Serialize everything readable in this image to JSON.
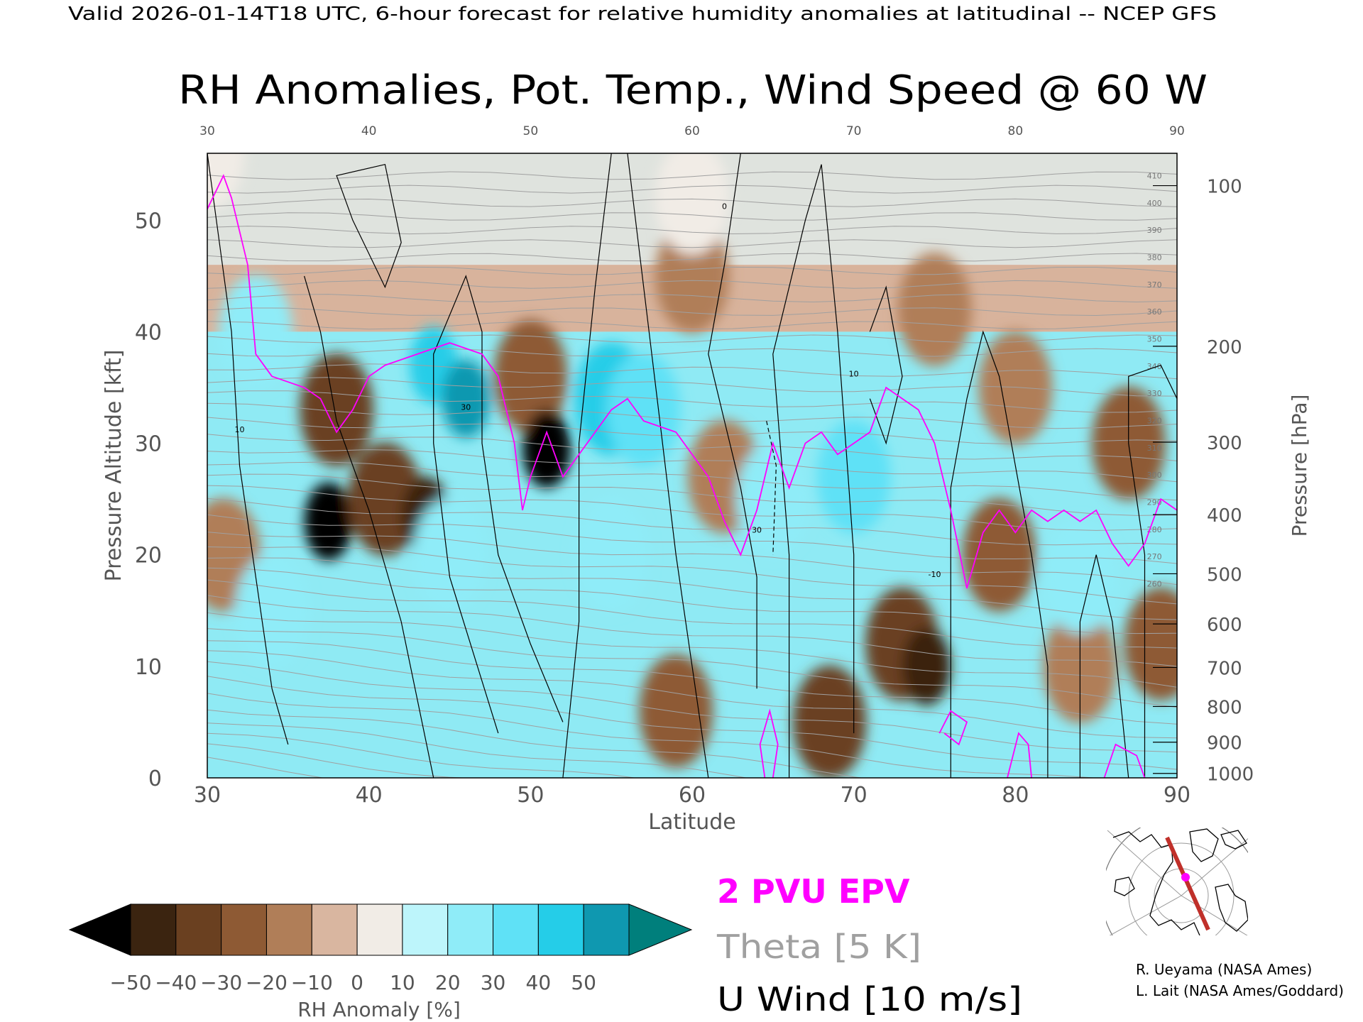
{
  "header": {
    "valid_line": "Valid 2026-01-14T18 UTC, 6-hour forecast for relative humidity anomalies at latitudinal -- NCEP GFS",
    "title": "RH Anomalies, Pot. Temp., Wind Speed @ 60 W"
  },
  "colors": {
    "epv": "#ff00ff",
    "theta": "#a0a0a0",
    "wind": "#000000",
    "map_section": "#c0302a"
  },
  "chart_data": {
    "type": "heatmap",
    "xlabel": "Latitude",
    "ylabel": "Pressure Altitude [kft]",
    "y2label": "Pressure [hPa]",
    "xlim": [
      30,
      90
    ],
    "ylim": [
      0,
      56
    ],
    "x_ticks": [
      "30",
      "40",
      "50",
      "60",
      "70",
      "80",
      "90"
    ],
    "y_ticks": [
      "0",
      "10",
      "20",
      "30",
      "40",
      "50"
    ],
    "pressure_ticks": [
      {
        "label": "100",
        "kft": 53.1
      },
      {
        "label": "200",
        "kft": 38.7
      },
      {
        "label": "300",
        "kft": 30.1
      },
      {
        "label": "400",
        "kft": 23.6
      },
      {
        "label": "500",
        "kft": 18.3
      },
      {
        "label": "600",
        "kft": 13.8
      },
      {
        "label": "700",
        "kft": 9.9
      },
      {
        "label": "800",
        "kft": 6.4
      },
      {
        "label": "900",
        "kft": 3.2
      },
      {
        "label": "1000",
        "kft": 0.4
      }
    ],
    "colorbar": {
      "label": "RH Anomaly [%]",
      "ticks": [
        "−50",
        "−40",
        "−30",
        "−20",
        "−10",
        "0",
        "10",
        "20",
        "30",
        "40",
        "50"
      ],
      "colors": [
        "#000000",
        "#3b2410",
        "#6a4020",
        "#8e5a34",
        "#b07e58",
        "#d9b6a0",
        "#f1ece6",
        "#bdf5fb",
        "#8fecf8",
        "#5fe1f6",
        "#25cde8",
        "#0f98b0",
        "#007f7c"
      ],
      "bins": [
        -60,
        -50,
        -40,
        -30,
        -20,
        -10,
        0,
        10,
        20,
        30,
        40,
        50,
        60
      ]
    },
    "legend": [
      {
        "label": "2 PVU EPV",
        "color": "#ff00ff"
      },
      {
        "label": "Theta [5 K]",
        "color": "#a0a0a0"
      },
      {
        "label": "U Wind [10 m/s]",
        "color": "#000000"
      }
    ],
    "theta_labels": [
      "410",
      "400",
      "390",
      "380",
      "370",
      "360",
      "350",
      "340",
      "330",
      "320",
      "310",
      "300",
      "290",
      "280",
      "270",
      "260"
    ],
    "wind_labels": [
      "10",
      "30",
      "0",
      "-10"
    ],
    "rh_anomaly_features": [
      {
        "lat": 30.0,
        "kft": 56.0,
        "value": 0
      },
      {
        "lat": 33.0,
        "kft": 40.0,
        "value": 25
      },
      {
        "lat": 37.5,
        "kft": 23.0,
        "value": -55
      },
      {
        "lat": 38.0,
        "kft": 33.0,
        "value": -35
      },
      {
        "lat": 41.0,
        "kft": 25.0,
        "value": -40
      },
      {
        "lat": 43.5,
        "kft": 23.5,
        "value": -50
      },
      {
        "lat": 31.0,
        "kft": 20.0,
        "value": -15
      },
      {
        "lat": 34.0,
        "kft": 15.0,
        "value": 20
      },
      {
        "lat": 44.0,
        "kft": 37.0,
        "value": 45
      },
      {
        "lat": 46.0,
        "kft": 34.0,
        "value": 52
      },
      {
        "lat": 45.0,
        "kft": 20.0,
        "value": 25
      },
      {
        "lat": 50.0,
        "kft": 36.0,
        "value": -25
      },
      {
        "lat": 51.0,
        "kft": 29.5,
        "value": -55
      },
      {
        "lat": 55.0,
        "kft": 34.0,
        "value": 40
      },
      {
        "lat": 57.0,
        "kft": 33.0,
        "value": 35
      },
      {
        "lat": 55.0,
        "kft": 20.0,
        "value": 20
      },
      {
        "lat": 59.0,
        "kft": 6.0,
        "value": -25
      },
      {
        "lat": 62.0,
        "kft": 27.0,
        "value": -20
      },
      {
        "lat": 65.0,
        "kft": 25.0,
        "value": 20
      },
      {
        "lat": 70.0,
        "kft": 27.0,
        "value": 30
      },
      {
        "lat": 68.5,
        "kft": 5.0,
        "value": -40
      },
      {
        "lat": 73.0,
        "kft": 12.0,
        "value": -35
      },
      {
        "lat": 74.5,
        "kft": 10.0,
        "value": -50
      },
      {
        "lat": 79.0,
        "kft": 20.0,
        "value": -30
      },
      {
        "lat": 80.0,
        "kft": 35.0,
        "value": -15
      },
      {
        "lat": 84.0,
        "kft": 10.0,
        "value": -20
      },
      {
        "lat": 84.0,
        "kft": 18.0,
        "value": 20
      },
      {
        "lat": 87.0,
        "kft": 30.0,
        "value": -30
      },
      {
        "lat": 89.0,
        "kft": 12.0,
        "value": -30
      },
      {
        "lat": 60.0,
        "kft": 45.0,
        "value": -12
      },
      {
        "lat": 75.0,
        "kft": 42.0,
        "value": -15
      },
      {
        "lat": 60.0,
        "kft": 52.0,
        "value": 1
      }
    ]
  },
  "credits": {
    "line1": "R. Ueyama (NASA Ames)",
    "line2": "L. Lait (NASA Ames/Goddard)"
  }
}
